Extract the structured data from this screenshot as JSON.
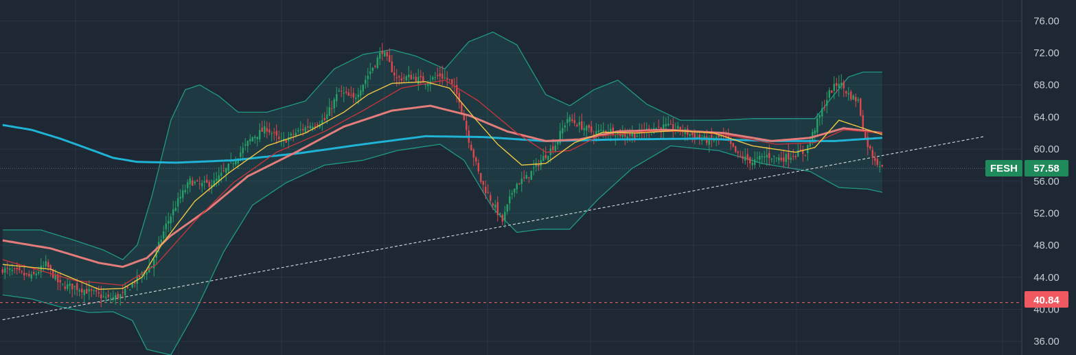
{
  "chart_data": {
    "type": "candlestick",
    "symbol": "FESH",
    "last_price": "57.58",
    "horizontal_line_label": "40.84",
    "horizontal_line_value": 40.84,
    "last_value": 57.58,
    "ylim": [
      34.3,
      78.6
    ],
    "y_ticks": [
      "36.00",
      "40.00",
      "44.00",
      "48.00",
      "52.00",
      "56.00",
      "60.00",
      "64.00",
      "68.00",
      "72.00",
      "76.00"
    ],
    "grid": true,
    "colors": {
      "background": "#1e2734",
      "grid": "#2b3543",
      "up": "#26a269",
      "down": "#e0474c",
      "ma_long": "#1fb3d6",
      "ma_mid": "#e57c7c",
      "ma_fast": "#f2c744",
      "ma_slow": "#c3343d",
      "bollinger": "#1f9a86",
      "trend": "#d9dde3",
      "hline": "#f06a6a",
      "symbol_badge": "#1f8a5a",
      "price_badge": "#1f8a5a",
      "hline_badge": "#f0595f"
    },
    "series": {
      "close_path": [
        [
          0,
          45.0
        ],
        [
          6,
          44.6
        ],
        [
          12,
          44.0
        ],
        [
          18,
          45.6
        ],
        [
          24,
          43.0
        ],
        [
          30,
          42.8
        ],
        [
          38,
          42.0
        ],
        [
          44,
          41.3
        ],
        [
          50,
          41.8
        ],
        [
          55,
          43.5
        ],
        [
          62,
          45.5
        ],
        [
          68,
          50.5
        ],
        [
          73,
          53.5
        ],
        [
          78,
          56.0
        ],
        [
          82,
          55.5
        ],
        [
          88,
          55.8
        ],
        [
          93,
          57.4
        ],
        [
          98,
          59.2
        ],
        [
          104,
          61.5
        ],
        [
          110,
          62.6
        ],
        [
          116,
          60.8
        ],
        [
          122,
          62.0
        ],
        [
          128,
          63.0
        ],
        [
          134,
          63.6
        ],
        [
          140,
          67.2
        ],
        [
          146,
          66.2
        ],
        [
          152,
          69.2
        ],
        [
          158,
          72.3
        ],
        [
          164,
          68.8
        ],
        [
          170,
          69.0
        ],
        [
          176,
          68.4
        ],
        [
          182,
          69.2
        ],
        [
          186,
          68.5
        ],
        [
          190,
          66.2
        ],
        [
          194,
          61.2
        ],
        [
          199,
          56.0
        ],
        [
          204,
          53.2
        ],
        [
          208,
          51.0
        ],
        [
          213,
          55.5
        ],
        [
          218,
          56.4
        ],
        [
          224,
          58.6
        ],
        [
          230,
          60.6
        ],
        [
          235,
          63.8
        ],
        [
          240,
          63.0
        ],
        [
          246,
          62.0
        ],
        [
          252,
          62.4
        ],
        [
          258,
          61.8
        ],
        [
          264,
          61.8
        ],
        [
          270,
          62.6
        ],
        [
          276,
          62.8
        ],
        [
          282,
          62.4
        ],
        [
          288,
          61.6
        ],
        [
          294,
          61.0
        ],
        [
          300,
          61.6
        ],
        [
          306,
          59.2
        ],
        [
          312,
          58.4
        ],
        [
          318,
          59.2
        ],
        [
          324,
          58.8
        ],
        [
          330,
          59.4
        ],
        [
          334,
          59.6
        ],
        [
          339,
          63.4
        ],
        [
          344,
          67.0
        ],
        [
          348,
          68.4
        ],
        [
          352,
          66.8
        ],
        [
          356,
          66.0
        ],
        [
          359,
          61.2
        ],
        [
          362,
          59.2
        ],
        [
          366,
          57.58
        ]
      ],
      "ma_fast_path": [
        [
          0,
          45.6
        ],
        [
          20,
          45.0
        ],
        [
          40,
          42.5
        ],
        [
          50,
          42.6
        ],
        [
          58,
          44.0
        ],
        [
          66,
          48.0
        ],
        [
          80,
          53.5
        ],
        [
          94,
          57.0
        ],
        [
          110,
          60.4
        ],
        [
          126,
          62.0
        ],
        [
          142,
          64.6
        ],
        [
          152,
          66.8
        ],
        [
          162,
          68.2
        ],
        [
          176,
          68.4
        ],
        [
          186,
          67.6
        ],
        [
          196,
          64.0
        ],
        [
          206,
          60.6
        ],
        [
          216,
          58.0
        ],
        [
          226,
          58.2
        ],
        [
          238,
          60.8
        ],
        [
          250,
          62.1
        ],
        [
          264,
          62.0
        ],
        [
          280,
          62.3
        ],
        [
          296,
          62.0
        ],
        [
          312,
          60.4
        ],
        [
          330,
          59.6
        ],
        [
          338,
          60.2
        ],
        [
          348,
          63.6
        ],
        [
          356,
          62.8
        ],
        [
          366,
          61.8
        ]
      ],
      "ma_slow_path": [
        [
          0,
          46.2
        ],
        [
          30,
          43.6
        ],
        [
          50,
          43.0
        ],
        [
          64,
          45.6
        ],
        [
          80,
          51.0
        ],
        [
          96,
          55.8
        ],
        [
          114,
          59.6
        ],
        [
          134,
          62.2
        ],
        [
          150,
          64.8
        ],
        [
          166,
          67.6
        ],
        [
          184,
          68.6
        ],
        [
          198,
          66.0
        ],
        [
          214,
          62.0
        ],
        [
          226,
          59.6
        ],
        [
          236,
          59.8
        ],
        [
          248,
          61.6
        ],
        [
          268,
          62.2
        ],
        [
          288,
          62.2
        ],
        [
          304,
          61.6
        ],
        [
          322,
          60.6
        ],
        [
          338,
          60.8
        ],
        [
          350,
          62.4
        ],
        [
          366,
          62.0
        ]
      ],
      "ma_mid_path": [
        [
          0,
          48.6
        ],
        [
          20,
          47.6
        ],
        [
          40,
          45.8
        ],
        [
          50,
          45.3
        ],
        [
          60,
          46.4
        ],
        [
          70,
          49.2
        ],
        [
          86,
          52.6
        ],
        [
          102,
          56.6
        ],
        [
          122,
          59.6
        ],
        [
          142,
          62.8
        ],
        [
          162,
          64.8
        ],
        [
          178,
          65.4
        ],
        [
          194,
          64.2
        ],
        [
          210,
          62.2
        ],
        [
          226,
          61.0
        ],
        [
          240,
          61.2
        ],
        [
          256,
          62.2
        ],
        [
          276,
          62.4
        ],
        [
          300,
          62.0
        ],
        [
          320,
          61.0
        ],
        [
          336,
          61.4
        ],
        [
          350,
          62.6
        ],
        [
          366,
          62.0
        ]
      ],
      "ma_long_path": [
        [
          0,
          63.0
        ],
        [
          12,
          62.4
        ],
        [
          24,
          61.3
        ],
        [
          36,
          60.0
        ],
        [
          46,
          58.9
        ],
        [
          56,
          58.4
        ],
        [
          72,
          58.3
        ],
        [
          96,
          58.6
        ],
        [
          124,
          59.5
        ],
        [
          150,
          60.6
        ],
        [
          176,
          61.6
        ],
        [
          200,
          61.5
        ],
        [
          226,
          61.0
        ],
        [
          256,
          61.2
        ],
        [
          290,
          61.3
        ],
        [
          320,
          61.0
        ],
        [
          346,
          61.0
        ],
        [
          366,
          61.4
        ]
      ],
      "bb_upper_path": [
        [
          0,
          49.9
        ],
        [
          16,
          49.9
        ],
        [
          30,
          48.6
        ],
        [
          42,
          47.4
        ],
        [
          50,
          46.2
        ],
        [
          56,
          48.0
        ],
        [
          62,
          54.0
        ],
        [
          70,
          63.6
        ],
        [
          76,
          67.4
        ],
        [
          82,
          68.0
        ],
        [
          90,
          66.6
        ],
        [
          98,
          64.6
        ],
        [
          110,
          64.6
        ],
        [
          126,
          66.0
        ],
        [
          138,
          70.0
        ],
        [
          150,
          71.8
        ],
        [
          162,
          72.4
        ],
        [
          172,
          71.6
        ],
        [
          184,
          70.0
        ],
        [
          194,
          73.4
        ],
        [
          204,
          74.6
        ],
        [
          214,
          73.0
        ],
        [
          226,
          66.8
        ],
        [
          236,
          65.4
        ],
        [
          246,
          67.4
        ],
        [
          256,
          68.6
        ],
        [
          268,
          65.6
        ],
        [
          282,
          63.6
        ],
        [
          298,
          63.6
        ],
        [
          312,
          63.8
        ],
        [
          326,
          63.8
        ],
        [
          338,
          63.8
        ],
        [
          346,
          66.8
        ],
        [
          352,
          69.0
        ],
        [
          358,
          69.6
        ],
        [
          366,
          69.6
        ]
      ],
      "bb_lower_path": [
        [
          0,
          41.8
        ],
        [
          12,
          41.3
        ],
        [
          24,
          40.3
        ],
        [
          36,
          39.6
        ],
        [
          46,
          39.7
        ],
        [
          54,
          38.6
        ],
        [
          60,
          35.0
        ],
        [
          70,
          34.3
        ],
        [
          80,
          39.6
        ],
        [
          92,
          47.2
        ],
        [
          104,
          53.0
        ],
        [
          118,
          55.8
        ],
        [
          134,
          58.0
        ],
        [
          150,
          58.6
        ],
        [
          164,
          59.8
        ],
        [
          182,
          60.6
        ],
        [
          192,
          58.6
        ],
        [
          204,
          52.6
        ],
        [
          214,
          49.6
        ],
        [
          224,
          50.0
        ],
        [
          236,
          50.0
        ],
        [
          248,
          53.8
        ],
        [
          262,
          57.6
        ],
        [
          278,
          60.4
        ],
        [
          298,
          59.8
        ],
        [
          316,
          58.2
        ],
        [
          336,
          57.2
        ],
        [
          348,
          55.2
        ],
        [
          360,
          55.0
        ],
        [
          366,
          54.6
        ]
      ],
      "trend_line": [
        [
          0,
          38.7
        ],
        [
          366,
          59.2
        ]
      ]
    }
  }
}
